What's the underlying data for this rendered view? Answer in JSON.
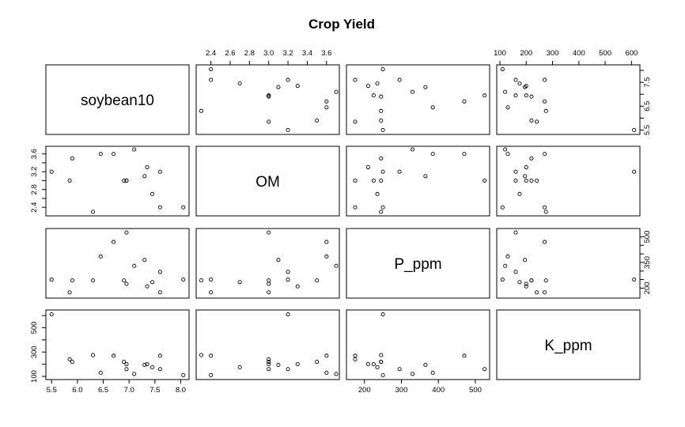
{
  "chart_data": {
    "type": "scatter",
    "subtype": "pairs",
    "title": "Crop Yield",
    "variables": [
      "soybean10",
      "OM",
      "P_ppm",
      "K_ppm"
    ],
    "axes": {
      "soybean10": {
        "range": [
          5.45,
          8.1
        ],
        "ticks": [
          5.5,
          6.0,
          6.5,
          7.0,
          7.5,
          8.0
        ],
        "labels": [
          "5.5",
          "6.0",
          "6.5",
          "7.0",
          "7.5",
          "8.0"
        ],
        "label_every": 1
      },
      "OM": {
        "range": [
          2.28,
          3.7
        ],
        "ticks": [
          2.4,
          2.6,
          2.8,
          3.0,
          3.2,
          3.4,
          3.6
        ],
        "labels": [
          "2.4",
          "2.6",
          "2.8",
          "3.0",
          "3.2",
          "3.4",
          "3.6"
        ],
        "label_every": 1
      },
      "P_ppm": {
        "range": [
          160,
          530
        ],
        "ticks": [
          200,
          300,
          400,
          500
        ],
        "labels": [
          "200",
          "300",
          "400",
          "500"
        ],
        "label_every": 1,
        "side_labels": [
          "200",
          "350",
          "500"
        ],
        "side_ticks": [
          200,
          250,
          300,
          350,
          400,
          450,
          500
        ],
        "side_label_every": 3
      },
      "K_ppm": {
        "range": [
          100,
          620
        ],
        "ticks": [
          100,
          200,
          300,
          400,
          500,
          600
        ],
        "labels": [
          "100",
          "200",
          "300",
          "400",
          "500",
          "600"
        ],
        "label_every": 1,
        "side_labels": [
          "100",
          "300",
          "500"
        ],
        "side_label_every": 2
      }
    },
    "grid": false,
    "legend": "none",
    "observations": [
      {
        "soybean10": 5.5,
        "OM": 3.2,
        "P_ppm": 250,
        "K_ppm": 610
      },
      {
        "soybean10": 5.85,
        "OM": 3.0,
        "P_ppm": 175,
        "K_ppm": 240
      },
      {
        "soybean10": 5.9,
        "OM": 3.5,
        "P_ppm": 245,
        "K_ppm": 220
      },
      {
        "soybean10": 6.3,
        "OM": 2.3,
        "P_ppm": 245,
        "K_ppm": 275
      },
      {
        "soybean10": 6.45,
        "OM": 3.6,
        "P_ppm": 385,
        "K_ppm": 130
      },
      {
        "soybean10": 6.7,
        "OM": 3.6,
        "P_ppm": 470,
        "K_ppm": 270
      },
      {
        "soybean10": 6.9,
        "OM": 3.0,
        "P_ppm": 245,
        "K_ppm": 220
      },
      {
        "soybean10": 6.95,
        "OM": 3.0,
        "P_ppm": 525,
        "K_ppm": 160
      },
      {
        "soybean10": 6.95,
        "OM": 3.0,
        "P_ppm": 225,
        "K_ppm": 200
      },
      {
        "soybean10": 7.1,
        "OM": 3.7,
        "P_ppm": 330,
        "K_ppm": 120
      },
      {
        "soybean10": 7.3,
        "OM": 3.1,
        "P_ppm": 365,
        "K_ppm": 195
      },
      {
        "soybean10": 7.35,
        "OM": 3.3,
        "P_ppm": 210,
        "K_ppm": 200
      },
      {
        "soybean10": 7.45,
        "OM": 2.7,
        "P_ppm": 235,
        "K_ppm": 175
      },
      {
        "soybean10": 7.6,
        "OM": 3.2,
        "P_ppm": 295,
        "K_ppm": 160
      },
      {
        "soybean10": 7.6,
        "OM": 2.4,
        "P_ppm": 175,
        "K_ppm": 270
      },
      {
        "soybean10": 8.05,
        "OM": 2.4,
        "P_ppm": 250,
        "K_ppm": 110
      }
    ]
  }
}
